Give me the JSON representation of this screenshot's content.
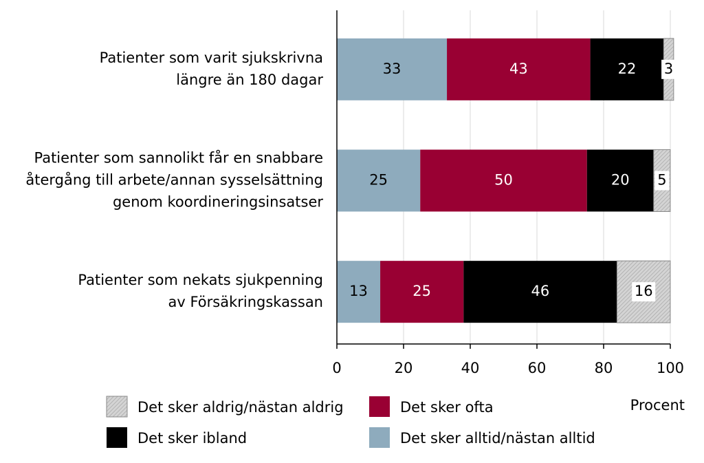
{
  "chart_data": {
    "type": "stacked-bar-horizontal",
    "categories": [
      [
        "Patienter som varit sjukskrivna",
        "längre än 180 dagar"
      ],
      [
        "Patienter som sannolikt får en snabbare",
        "återgång till arbete/annan sysselsättning",
        "genom koordineringsinsatser"
      ],
      [
        "Patienter som nekats sjukpenning",
        "av Försäkringskassan"
      ]
    ],
    "series": [
      {
        "name": "Det sker alltid/nästan alltid",
        "color": "#8eabbd",
        "values": [
          33,
          25,
          13
        ]
      },
      {
        "name": "Det sker ofta",
        "color": "#990033",
        "values": [
          43,
          50,
          25
        ]
      },
      {
        "name": "Det sker ibland",
        "color": "#000000",
        "values": [
          22,
          20,
          46
        ]
      },
      {
        "name": "Det sker aldrig/nästan aldrig",
        "color": "#c8c8c8",
        "values": [
          3,
          5,
          16
        ]
      }
    ],
    "x_label": "Procent",
    "xlim": [
      0,
      100
    ],
    "xticks": [
      0,
      20,
      40,
      60,
      80,
      100
    ],
    "grid": true
  }
}
